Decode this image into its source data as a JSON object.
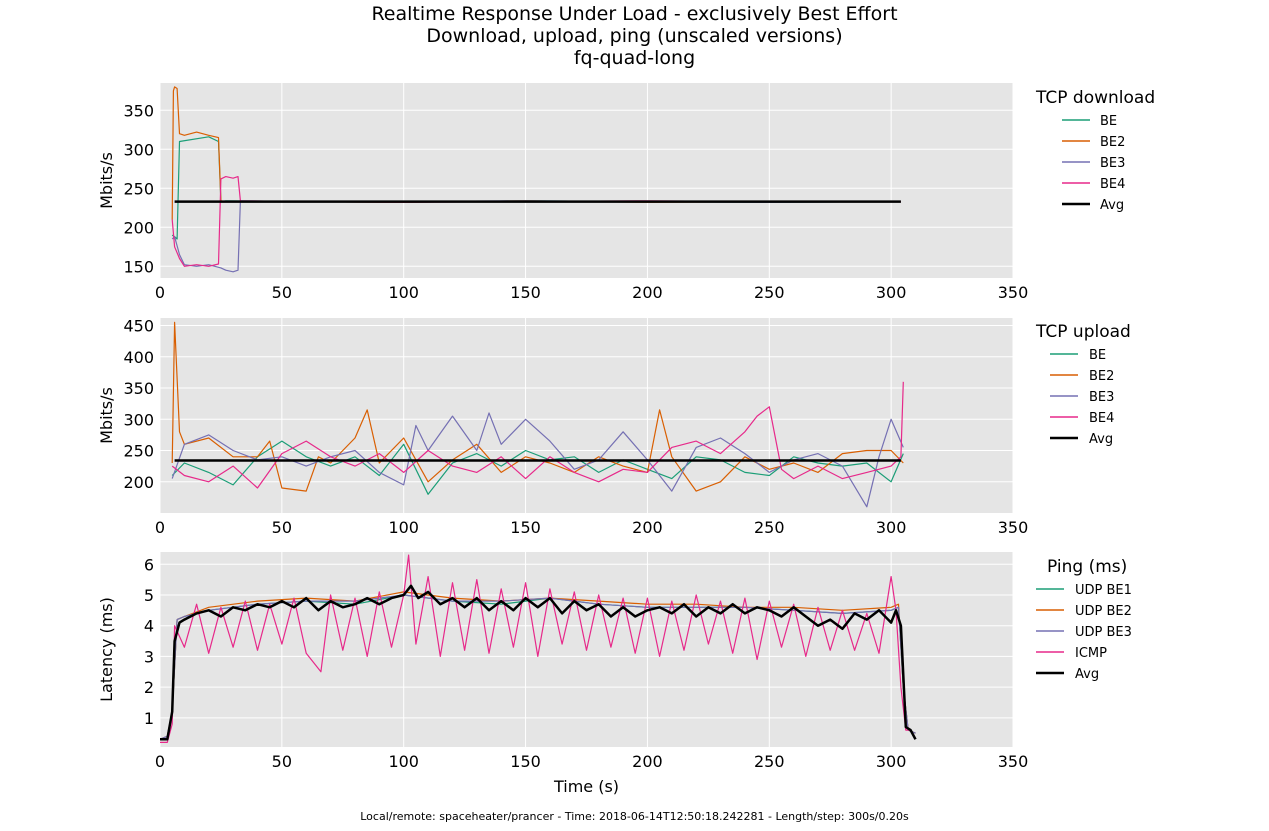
{
  "figure": {
    "title_lines": [
      "Realtime Response Under Load - exclusively Best Effort",
      "Download, upload, ping (unscaled versions)",
      "fq-quad-long"
    ],
    "footer": "Local/remote: spaceheater/prancer - Time: 2018-06-14T12:50:18.242281 - Length/step: 300s/0.20s"
  },
  "colors": {
    "teal": "#1b9e77",
    "orange": "#d95f02",
    "purple": "#7570b3",
    "pink": "#e7298a",
    "avg": "#000000",
    "plot_bg": "#e5e5e5",
    "grid": "#ffffff"
  },
  "chart_data": [
    {
      "type": "line",
      "legend_title": "TCP download",
      "ylabel": "Mbits/s",
      "xlabel": "",
      "xlim": [
        0,
        350
      ],
      "ylim": [
        135,
        385
      ],
      "xticks": [
        0,
        50,
        100,
        150,
        200,
        250,
        300,
        350
      ],
      "yticks": [
        150,
        200,
        250,
        300,
        350
      ],
      "legend_placement": "right",
      "grid": true,
      "series": [
        {
          "name": "BE",
          "color": "#1b9e77",
          "x": [
            5,
            6,
            7,
            8,
            20,
            24,
            25,
            27,
            60,
            100,
            150,
            200,
            250,
            304
          ],
          "y": [
            190,
            188,
            185,
            310,
            316,
            310,
            233,
            234,
            233,
            232,
            234,
            233,
            232,
            233
          ]
        },
        {
          "name": "BE2",
          "color": "#d95f02",
          "x": [
            5,
            5.5,
            6,
            7,
            8,
            10,
            15,
            20,
            24,
            25,
            27,
            60,
            100,
            150,
            200,
            250,
            304
          ],
          "y": [
            210,
            375,
            380,
            378,
            320,
            318,
            322,
            318,
            315,
            234,
            233,
            233,
            232,
            234,
            232,
            233,
            233
          ]
        },
        {
          "name": "BE3",
          "color": "#7570b3",
          "x": [
            5,
            6,
            8,
            10,
            15,
            20,
            25,
            27,
            30,
            32,
            33,
            60,
            100,
            150,
            200,
            250,
            304
          ],
          "y": [
            185,
            188,
            165,
            152,
            150,
            152,
            148,
            145,
            143,
            145,
            234,
            233,
            233,
            234,
            233,
            232,
            233
          ]
        },
        {
          "name": "BE4",
          "color": "#e7298a",
          "x": [
            5,
            6,
            8,
            10,
            15,
            20,
            24,
            25,
            27,
            30,
            32,
            33,
            60,
            100,
            150,
            200,
            250,
            304
          ],
          "y": [
            210,
            175,
            160,
            150,
            152,
            150,
            153,
            262,
            265,
            263,
            265,
            234,
            233,
            232,
            233,
            234,
            233,
            233
          ]
        },
        {
          "name": "Avg",
          "color": "#000000",
          "x": [
            6,
            50,
            100,
            150,
            200,
            250,
            304
          ],
          "y": [
            233,
            233,
            233,
            233,
            233,
            233,
            233
          ]
        }
      ]
    },
    {
      "type": "line",
      "legend_title": "TCP upload",
      "ylabel": "Mbits/s",
      "xlabel": "",
      "xlim": [
        0,
        350
      ],
      "ylim": [
        150,
        462
      ],
      "xticks": [
        0,
        50,
        100,
        150,
        200,
        250,
        300,
        350
      ],
      "yticks": [
        200,
        250,
        300,
        350,
        400,
        450
      ],
      "legend_placement": "right",
      "grid": true,
      "series": [
        {
          "name": "BE",
          "color": "#1b9e77",
          "x": [
            5,
            10,
            20,
            30,
            40,
            50,
            60,
            70,
            80,
            90,
            100,
            110,
            120,
            130,
            140,
            150,
            160,
            170,
            180,
            190,
            200,
            210,
            220,
            230,
            240,
            250,
            260,
            270,
            280,
            290,
            300,
            305
          ],
          "y": [
            210,
            230,
            215,
            195,
            240,
            265,
            240,
            225,
            240,
            210,
            260,
            180,
            230,
            245,
            225,
            250,
            235,
            240,
            215,
            235,
            220,
            205,
            240,
            235,
            215,
            210,
            240,
            230,
            225,
            230,
            200,
            245
          ]
        },
        {
          "name": "BE2",
          "color": "#d95f02",
          "x": [
            5,
            6,
            8,
            10,
            20,
            30,
            40,
            45,
            50,
            60,
            65,
            70,
            80,
            85,
            90,
            100,
            110,
            120,
            130,
            140,
            150,
            160,
            170,
            180,
            190,
            200,
            205,
            210,
            220,
            230,
            240,
            250,
            260,
            270,
            280,
            290,
            300,
            305
          ],
          "y": [
            230,
            455,
            280,
            260,
            270,
            240,
            240,
            265,
            190,
            185,
            240,
            230,
            270,
            315,
            230,
            270,
            200,
            235,
            260,
            215,
            240,
            230,
            215,
            240,
            225,
            215,
            315,
            240,
            185,
            200,
            240,
            220,
            230,
            215,
            245,
            250,
            250,
            230
          ]
        },
        {
          "name": "BE3",
          "color": "#7570b3",
          "x": [
            5,
            10,
            20,
            30,
            40,
            50,
            60,
            70,
            80,
            90,
            100,
            105,
            110,
            120,
            130,
            135,
            140,
            150,
            160,
            170,
            180,
            190,
            200,
            210,
            220,
            230,
            240,
            250,
            260,
            270,
            280,
            290,
            295,
            300,
            305
          ],
          "y": [
            205,
            260,
            275,
            250,
            235,
            240,
            225,
            240,
            250,
            215,
            195,
            290,
            250,
            305,
            250,
            310,
            260,
            300,
            265,
            220,
            235,
            280,
            235,
            185,
            255,
            270,
            245,
            215,
            235,
            245,
            225,
            160,
            240,
            300,
            255
          ]
        },
        {
          "name": "BE4",
          "color": "#e7298a",
          "x": [
            5,
            10,
            20,
            30,
            40,
            50,
            60,
            70,
            80,
            90,
            100,
            110,
            120,
            130,
            140,
            150,
            160,
            170,
            180,
            190,
            200,
            210,
            220,
            230,
            240,
            245,
            250,
            255,
            260,
            270,
            280,
            290,
            300,
            304,
            305
          ],
          "y": [
            225,
            210,
            200,
            225,
            190,
            245,
            265,
            240,
            225,
            245,
            215,
            250,
            225,
            215,
            240,
            205,
            240,
            215,
            200,
            220,
            215,
            255,
            265,
            245,
            280,
            305,
            320,
            220,
            205,
            225,
            205,
            215,
            225,
            240,
            360
          ]
        },
        {
          "name": "Avg",
          "color": "#000000",
          "x": [
            6,
            50,
            100,
            150,
            200,
            250,
            304
          ],
          "y": [
            234,
            234,
            234,
            234,
            234,
            234,
            234
          ]
        }
      ]
    },
    {
      "type": "line",
      "legend_title": "Ping (ms)",
      "ylabel": "Latency (ms)",
      "xlabel": "Time (s)",
      "xlim": [
        0,
        350
      ],
      "ylim": [
        0.05,
        6.4
      ],
      "xticks": [
        0,
        50,
        100,
        150,
        200,
        250,
        300,
        350
      ],
      "yticks": [
        1,
        2,
        3,
        4,
        5,
        6
      ],
      "legend_placement": "right",
      "grid": true,
      "series": [
        {
          "name": "UDP BE1",
          "color": "#1b9e77",
          "x": [
            0,
            3,
            5,
            7,
            10,
            20,
            40,
            60,
            80,
            100,
            120,
            140,
            160,
            180,
            200,
            220,
            240,
            260,
            280,
            300,
            303,
            305,
            307,
            310
          ],
          "y": [
            0.3,
            0.4,
            1.2,
            4.2,
            4.3,
            4.5,
            4.7,
            4.8,
            4.7,
            5.0,
            4.8,
            4.7,
            4.9,
            4.7,
            4.6,
            4.6,
            4.6,
            4.5,
            4.4,
            4.5,
            4.6,
            2.0,
            0.6,
            0.5
          ]
        },
        {
          "name": "UDP BE2",
          "color": "#d95f02",
          "x": [
            0,
            3,
            5,
            7,
            10,
            20,
            40,
            60,
            80,
            100,
            120,
            140,
            160,
            180,
            200,
            220,
            240,
            260,
            280,
            300,
            303,
            305,
            307,
            310
          ],
          "y": [
            0.3,
            0.4,
            1.2,
            4.2,
            4.3,
            4.6,
            4.8,
            4.9,
            4.8,
            5.1,
            4.9,
            4.8,
            4.9,
            4.8,
            4.7,
            4.7,
            4.6,
            4.6,
            4.5,
            4.6,
            4.7,
            2.0,
            0.6,
            0.5
          ]
        },
        {
          "name": "UDP BE3",
          "color": "#7570b3",
          "x": [
            0,
            3,
            5,
            7,
            10,
            20,
            40,
            60,
            80,
            100,
            120,
            140,
            160,
            180,
            200,
            220,
            240,
            260,
            280,
            300,
            303,
            305,
            307,
            310
          ],
          "y": [
            0.3,
            0.4,
            1.2,
            4.2,
            4.3,
            4.5,
            4.7,
            4.8,
            4.8,
            5.0,
            4.8,
            4.8,
            4.9,
            4.7,
            4.6,
            4.6,
            4.6,
            4.5,
            4.4,
            4.5,
            4.6,
            2.0,
            0.6,
            0.5
          ]
        },
        {
          "name": "ICMP",
          "color": "#e7298a",
          "x": [
            0,
            3,
            5,
            6,
            10,
            15,
            20,
            25,
            30,
            35,
            40,
            45,
            50,
            55,
            60,
            66,
            70,
            75,
            80,
            85,
            90,
            95,
            100,
            102,
            105,
            110,
            115,
            120,
            125,
            130,
            135,
            140,
            145,
            150,
            155,
            160,
            165,
            170,
            175,
            180,
            185,
            190,
            195,
            200,
            205,
            210,
            215,
            220,
            225,
            230,
            235,
            240,
            245,
            250,
            255,
            260,
            265,
            270,
            275,
            280,
            285,
            290,
            295,
            300,
            302,
            304,
            306,
            308
          ],
          "y": [
            0.2,
            0.2,
            0.8,
            4.0,
            3.3,
            4.7,
            3.1,
            4.6,
            3.3,
            4.8,
            3.2,
            4.7,
            3.4,
            4.9,
            3.1,
            2.5,
            5.0,
            3.2,
            4.9,
            3.0,
            5.1,
            3.3,
            5.0,
            6.3,
            3.4,
            5.6,
            3.0,
            5.4,
            3.2,
            5.5,
            3.1,
            5.2,
            3.3,
            5.4,
            3.0,
            5.2,
            3.4,
            5.1,
            3.2,
            5.0,
            3.3,
            4.9,
            3.1,
            4.9,
            3.0,
            4.8,
            3.2,
            5.0,
            3.4,
            4.8,
            3.1,
            4.9,
            2.9,
            4.8,
            3.3,
            4.7,
            3.0,
            4.6,
            3.2,
            4.5,
            3.2,
            4.4,
            3.1,
            5.6,
            4.5,
            2.0,
            0.6,
            0.6
          ]
        },
        {
          "name": "Avg",
          "color": "#000000",
          "x": [
            0,
            3,
            5,
            6,
            8,
            10,
            15,
            20,
            25,
            30,
            35,
            40,
            45,
            50,
            55,
            60,
            65,
            70,
            75,
            80,
            85,
            90,
            95,
            100,
            103,
            106,
            110,
            115,
            120,
            125,
            130,
            135,
            140,
            145,
            150,
            155,
            160,
            165,
            170,
            175,
            180,
            185,
            190,
            195,
            200,
            205,
            210,
            215,
            220,
            225,
            230,
            235,
            240,
            245,
            250,
            255,
            260,
            265,
            270,
            275,
            280,
            285,
            290,
            295,
            300,
            302,
            304,
            306,
            308,
            310
          ],
          "y": [
            0.3,
            0.3,
            1.2,
            3.5,
            4.1,
            4.2,
            4.4,
            4.5,
            4.3,
            4.6,
            4.5,
            4.7,
            4.6,
            4.8,
            4.6,
            4.9,
            4.5,
            4.8,
            4.6,
            4.7,
            4.9,
            4.7,
            4.9,
            5.0,
            5.3,
            4.9,
            5.1,
            4.7,
            4.9,
            4.6,
            4.9,
            4.5,
            4.8,
            4.5,
            4.9,
            4.6,
            4.9,
            4.4,
            4.8,
            4.5,
            4.7,
            4.3,
            4.6,
            4.3,
            4.5,
            4.6,
            4.4,
            4.7,
            4.3,
            4.6,
            4.4,
            4.7,
            4.4,
            4.6,
            4.5,
            4.3,
            4.6,
            4.3,
            4.0,
            4.2,
            3.9,
            4.4,
            4.2,
            4.5,
            4.1,
            4.5,
            4.0,
            0.7,
            0.6,
            0.3
          ]
        }
      ]
    }
  ]
}
